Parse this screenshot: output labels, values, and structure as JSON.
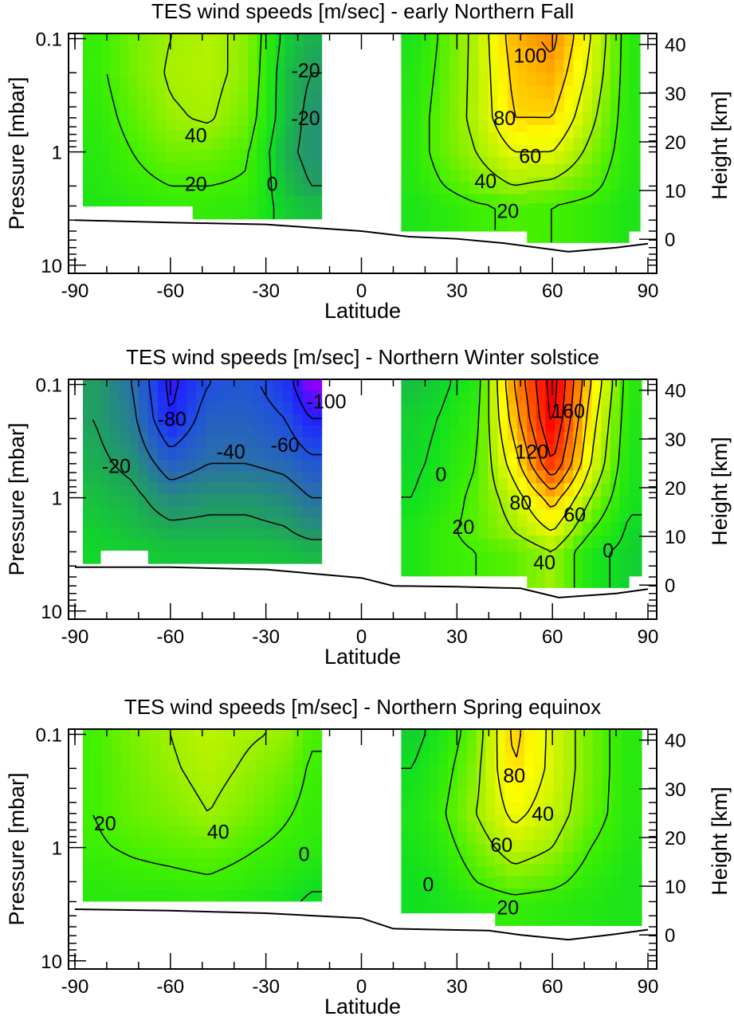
{
  "colors": {
    "colormap": [
      [
        -100,
        "#9000ff"
      ],
      [
        -80,
        "#2020ff"
      ],
      [
        -60,
        "#2050e0"
      ],
      [
        -40,
        "#2a70a8"
      ],
      [
        -20,
        "#20a060"
      ],
      [
        0,
        "#10e020"
      ],
      [
        20,
        "#40f000"
      ],
      [
        40,
        "#a0f000"
      ],
      [
        60,
        "#e8f800"
      ],
      [
        70,
        "#ffff00"
      ],
      [
        80,
        "#ffd800"
      ],
      [
        100,
        "#ff9800"
      ],
      [
        120,
        "#ff6000"
      ],
      [
        140,
        "#ff3000"
      ],
      [
        160,
        "#ff0000"
      ]
    ],
    "contour": "#000000",
    "surface": "#000000"
  },
  "chart_data": [
    {
      "type": "heatmap",
      "title": "TES wind speeds [m/sec] - early Northern Fall",
      "xlabel": "Latitude",
      "ylabel": "Pressure [mbar]",
      "y2label": "Height [km]",
      "xlim": [
        -92,
        92.75
      ],
      "ylim": [
        0.09,
        11.8
      ],
      "yscale": "log",
      "grid": false,
      "xticks": [
        "-90",
        "-60",
        "-30",
        "0",
        "30",
        "60",
        "90"
      ],
      "yticks": [
        "0.1",
        "1",
        "10"
      ],
      "y2ticks": [
        "0",
        "10",
        "20",
        "30",
        "40"
      ],
      "wind_field": {
        "levels_mbar": [
          0.1,
          0.2,
          0.5,
          1,
          2,
          3
        ],
        "south": {
          "lats": [
            -84,
            -72,
            -60,
            -48,
            -36,
            -24,
            -16
          ],
          "values": [
            [
              15,
              15,
              12,
              10,
              8,
              5
            ],
            [
              30,
              30,
              25,
              20,
              15,
              10
            ],
            [
              40,
              42,
              38,
              30,
              20,
              15
            ],
            [
              45,
              45,
              42,
              30,
              20,
              15
            ],
            [
              35,
              35,
              30,
              22,
              18,
              12
            ],
            [
              -5,
              -10,
              -10,
              -15,
              -10,
              -5
            ],
            [
              -15,
              -20,
              -25,
              -25,
              -20,
              -10
            ]
          ],
          "extent": [
            [
              -87.5,
              -53,
              3.0
            ],
            [
              -53,
              -12.5,
              3.9
            ]
          ]
        },
        "north": {
          "lats": [
            16,
            24,
            36,
            48,
            60,
            72,
            84
          ],
          "values": [
            [
              5,
              8,
              10,
              10,
              8,
              5
            ],
            [
              20,
              22,
              25,
              25,
              18,
              10
            ],
            [
              45,
              45,
              45,
              40,
              30,
              18
            ],
            [
              90,
              85,
              80,
              60,
              40,
              22
            ],
            [
              105,
              95,
              80,
              60,
              35,
              20
            ],
            [
              60,
              55,
              45,
              35,
              25,
              15
            ],
            [
              10,
              10,
              10,
              10,
              8,
              5
            ]
          ],
          "extent": [
            [
              12.5,
              52,
              5.0
            ],
            [
              52,
              84,
              6.3
            ],
            [
              84,
              87.5,
              5.0
            ]
          ]
        }
      },
      "contour_levels": [
        -20,
        0,
        20,
        40,
        60,
        80,
        100
      ],
      "contour_labels": [
        {
          "text": "40",
          "lat": -52,
          "p": 0.71
        },
        {
          "text": "20",
          "lat": -52,
          "p": 1.9
        },
        {
          "text": "0",
          "lat": -28,
          "p": 1.9
        },
        {
          "text": "-20",
          "lat": -17.5,
          "p": 0.19
        },
        {
          "text": "-20",
          "lat": -17.5,
          "p": 0.5
        },
        {
          "text": "100",
          "lat": 53,
          "p": 0.14
        },
        {
          "text": "80",
          "lat": 45,
          "p": 0.5
        },
        {
          "text": "60",
          "lat": 53,
          "p": 1.08
        },
        {
          "text": "40",
          "lat": 39,
          "p": 1.8
        },
        {
          "text": "20",
          "lat": 46,
          "p": 3.3
        }
      ],
      "surface_pressure": {
        "lats": [
          -90,
          -60,
          -30,
          0,
          15,
          30,
          45,
          65,
          80,
          90
        ],
        "p": [
          4.0,
          4.2,
          4.37,
          5.0,
          5.6,
          5.85,
          6.4,
          7.6,
          7.0,
          6.45
        ]
      }
    },
    {
      "type": "heatmap",
      "title": "TES wind speeds [m/sec] - Northern Winter solstice",
      "xlabel": "Latitude",
      "ylabel": "Pressure [mbar]",
      "y2label": "Height [km]",
      "xlim": [
        -92,
        92.75
      ],
      "ylim": [
        0.09,
        11.8
      ],
      "yscale": "log",
      "grid": false,
      "xticks": [
        "-90",
        "-60",
        "-30",
        "0",
        "30",
        "60",
        "90"
      ],
      "yticks": [
        "0.1",
        "1",
        "10"
      ],
      "y2ticks": [
        "0",
        "10",
        "20",
        "30",
        "40"
      ],
      "wind_field": {
        "levels_mbar": [
          0.1,
          0.2,
          0.5,
          1,
          2,
          3
        ],
        "south": {
          "lats": [
            -84,
            -72,
            -60,
            -48,
            -36,
            -24,
            -16
          ],
          "values": [
            [
              -20,
              -20,
              -15,
              -10,
              -5,
              -3
            ],
            [
              -40,
              -35,
              -25,
              -15,
              -10,
              -5
            ],
            [
              -85,
              -80,
              -50,
              -30,
              -15,
              -8
            ],
            [
              -60,
              -50,
              -40,
              -25,
              -15,
              -8
            ],
            [
              -55,
              -50,
              -40,
              -25,
              -15,
              -8
            ],
            [
              -70,
              -60,
              -45,
              -30,
              -18,
              -10
            ],
            [
              -100,
              -80,
              -55,
              -40,
              -25,
              -12
            ]
          ],
          "extent": [
            [
              -87.5,
              -82,
              3.8
            ],
            [
              -82,
              -67,
              2.9
            ],
            [
              -67,
              -12.5,
              3.8
            ]
          ]
        },
        "north": {
          "lats": [
            16,
            24,
            36,
            48,
            60,
            72,
            84
          ],
          "values": [
            [
              -10,
              -5,
              -3,
              0,
              5,
              5
            ],
            [
              -5,
              0,
              3,
              8,
              15,
              15
            ],
            [
              10,
              15,
              20,
              25,
              25,
              20
            ],
            [
              100,
              90,
              70,
              50,
              40,
              25
            ],
            [
              170,
              165,
              140,
              90,
              60,
              40
            ],
            [
              80,
              70,
              60,
              40,
              20,
              5
            ],
            [
              10,
              8,
              5,
              3,
              -3,
              -5
            ]
          ],
          "extent": [
            [
              12.5,
              52,
              4.9
            ],
            [
              52,
              84,
              6.2
            ],
            [
              84,
              88,
              4.9
            ]
          ]
        }
      },
      "contour_levels": [
        -100,
        -80,
        -60,
        -40,
        -20,
        0,
        20,
        40,
        60,
        80,
        100,
        120,
        140,
        160
      ],
      "contour_labels": [
        {
          "text": "-80",
          "lat": -59.5,
          "p": 0.2
        },
        {
          "text": "-100",
          "lat": -11,
          "p": 0.14
        },
        {
          "text": "-60",
          "lat": -24,
          "p": 0.34
        },
        {
          "text": "-40",
          "lat": -41,
          "p": 0.39
        },
        {
          "text": "-20",
          "lat": -77,
          "p": 0.52
        },
        {
          "text": "0",
          "lat": 25,
          "p": 0.62
        },
        {
          "text": "120",
          "lat": 53.5,
          "p": 0.39
        },
        {
          "text": "160",
          "lat": 65,
          "p": 0.17
        },
        {
          "text": "80",
          "lat": 50,
          "p": 1.1
        },
        {
          "text": "60",
          "lat": 67,
          "p": 1.4
        },
        {
          "text": "20",
          "lat": 32,
          "p": 1.8
        },
        {
          "text": "40",
          "lat": 57.5,
          "p": 3.7
        },
        {
          "text": "0",
          "lat": 77.5,
          "p": 2.9
        }
      ],
      "surface_pressure": {
        "lats": [
          -90,
          -60,
          -30,
          0,
          10,
          30,
          50,
          62,
          80,
          90
        ],
        "p": [
          4.1,
          4.1,
          4.3,
          5.1,
          6.0,
          6.1,
          6.3,
          7.6,
          7.0,
          6.4
        ]
      }
    },
    {
      "type": "heatmap",
      "title": "TES wind speeds [m/sec] - Northern Spring equinox",
      "xlabel": "Latitude",
      "ylabel": "Pressure [mbar]",
      "y2label": "Height [km]",
      "xlim": [
        -92,
        92.75
      ],
      "ylim": [
        0.09,
        11.8
      ],
      "yscale": "log",
      "grid": false,
      "xticks": [
        "-90",
        "-60",
        "-30",
        "0",
        "30",
        "60",
        "90"
      ],
      "yticks": [
        "0.1",
        "1",
        "10"
      ],
      "y2ticks": [
        "0",
        "10",
        "20",
        "30",
        "40"
      ],
      "wind_field": {
        "levels_mbar": [
          0.1,
          0.2,
          0.5,
          1,
          2,
          3
        ],
        "south": {
          "lats": [
            -84,
            -72,
            -60,
            -48,
            -36,
            -24,
            -16
          ],
          "values": [
            [
              20,
              20,
              20,
              18,
              12,
              10
            ],
            [
              32,
              30,
              28,
              22,
              15,
              10
            ],
            [
              40,
              38,
              33,
              25,
              16,
              10
            ],
            [
              48,
              45,
              40,
              28,
              18,
              12
            ],
            [
              42,
              38,
              32,
              22,
              14,
              8
            ],
            [
              38,
              30,
              22,
              16,
              8,
              3
            ],
            [
              22,
              18,
              15,
              12,
              2,
              -2
            ]
          ],
          "extent": [
            [
              -87.5,
              -12.5,
              2.97
            ]
          ]
        },
        "north": {
          "lats": [
            16,
            24,
            36,
            48,
            60,
            72,
            84
          ],
          "values": [
            [
              -5,
              0,
              5,
              3,
              0,
              0
            ],
            [
              5,
              10,
              15,
              10,
              5,
              3
            ],
            [
              30,
              35,
              40,
              30,
              20,
              10
            ],
            [
              85,
              80,
              65,
              50,
              30,
              15
            ],
            [
              55,
              55,
              50,
              40,
              25,
              12
            ],
            [
              30,
              30,
              28,
              20,
              12,
              8
            ],
            [
              10,
              10,
              10,
              8,
              5,
              5
            ]
          ],
          "extent": [
            [
              12.5,
              42,
              3.77
            ],
            [
              42,
              88,
              4.87
            ]
          ]
        }
      },
      "contour_levels": [
        0,
        20,
        40,
        60,
        80
      ],
      "contour_labels": [
        {
          "text": "20",
          "lat": -80.5,
          "p": 0.61
        },
        {
          "text": "40",
          "lat": -45,
          "p": 0.72
        },
        {
          "text": "0",
          "lat": -18,
          "p": 1.14
        },
        {
          "text": "80",
          "lat": 48,
          "p": 0.23
        },
        {
          "text": "60",
          "lat": 44,
          "p": 0.94
        },
        {
          "text": "40",
          "lat": 57,
          "p": 0.5
        },
        {
          "text": "0",
          "lat": 21,
          "p": 2.1
        },
        {
          "text": "20",
          "lat": 46,
          "p": 3.35
        }
      ],
      "surface_pressure": {
        "lats": [
          -90,
          -60,
          -30,
          0,
          10,
          40,
          50,
          65,
          80,
          90
        ],
        "p": [
          3.5,
          3.6,
          3.8,
          4.2,
          5.2,
          5.4,
          5.9,
          6.5,
          5.8,
          5.3
        ]
      }
    }
  ]
}
